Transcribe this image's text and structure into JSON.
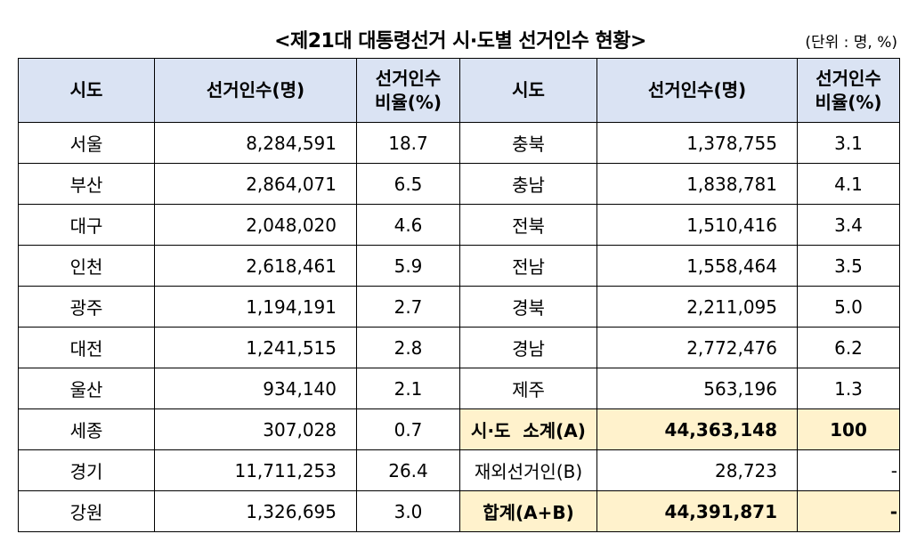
{
  "title": "<제21대 대통령선거 시·도별 선거인수 현황>",
  "unit": "(단위 : 명, %)",
  "headers": [
    "시도",
    "선거인수(명)",
    "선거인수\n비율(%)",
    "시도",
    "선거인수(명)",
    "선거인수\n비율(%)"
  ],
  "rows": [
    {
      "l_region": "서울",
      "l_count": "8,284,591",
      "l_ratio": "18.7",
      "r_region": "충북",
      "r_count": "1,378,755",
      "r_ratio": "3.1"
    },
    {
      "l_region": "부산",
      "l_count": "2,864,071",
      "l_ratio": "6.5",
      "r_region": "충남",
      "r_count": "1,838,781",
      "r_ratio": "4.1"
    },
    {
      "l_region": "대구",
      "l_count": "2,048,020",
      "l_ratio": "4.6",
      "r_region": "전북",
      "r_count": "1,510,416",
      "r_ratio": "3.4"
    },
    {
      "l_region": "인천",
      "l_count": "2,618,461",
      "l_ratio": "5.9",
      "r_region": "전남",
      "r_count": "1,558,464",
      "r_ratio": "3.5"
    },
    {
      "l_region": "광주",
      "l_count": "1,194,191",
      "l_ratio": "2.7",
      "r_region": "경북",
      "r_count": "2,211,095",
      "r_ratio": "5.0"
    },
    {
      "l_region": "대전",
      "l_count": "1,241,515",
      "l_ratio": "2.8",
      "r_region": "경남",
      "r_count": "2,772,476",
      "r_ratio": "6.2"
    },
    {
      "l_region": "울산",
      "l_count": "934,140",
      "l_ratio": "2.1",
      "r_region": "제주",
      "r_count": "563,196",
      "r_ratio": "1.3"
    },
    {
      "l_region": "세종",
      "l_count": "307,028",
      "l_ratio": "0.7",
      "r_region": "시·도  소계(A)",
      "r_count": "44,363,148",
      "r_ratio": "100"
    },
    {
      "l_region": "경기",
      "l_count": "11,711,253",
      "l_ratio": "26.4",
      "r_region": "재외선거인(B)",
      "r_count": "28,723",
      "r_ratio": "-"
    },
    {
      "l_region": "강원",
      "l_count": "1,326,695",
      "l_ratio": "3.0",
      "r_region": "합계(A+B)",
      "r_count": "44,391,871",
      "r_ratio": "-"
    }
  ],
  "highlighted_rows": [
    7,
    9
  ],
  "colors": {
    "header_bg": "#dae3f3",
    "total_bg": "#fff2cc",
    "border": "#000000"
  }
}
